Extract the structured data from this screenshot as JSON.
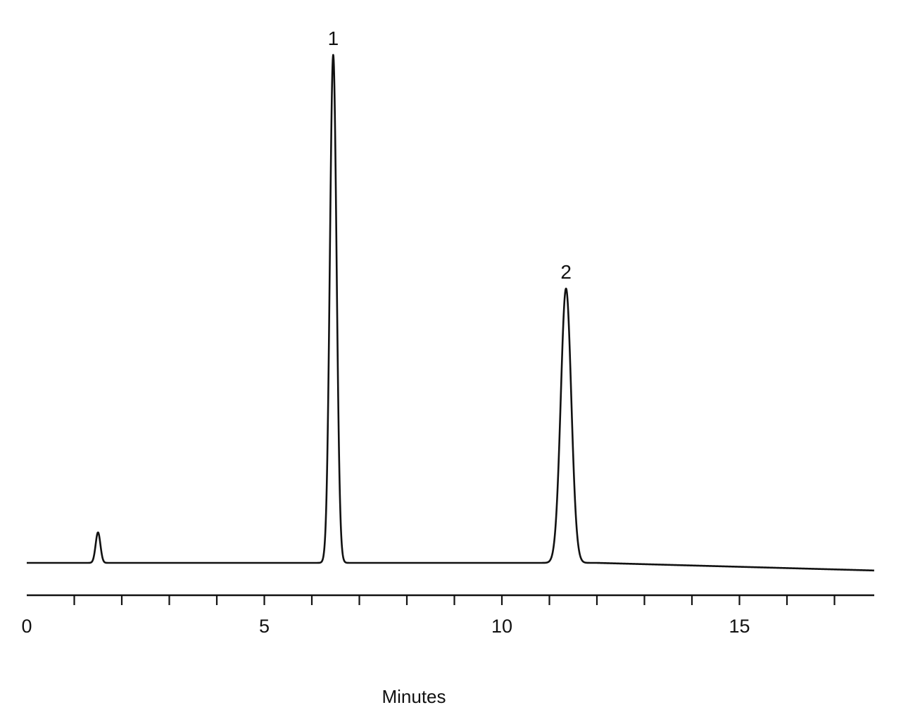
{
  "chart_data": {
    "type": "line",
    "xlabel": "Minutes",
    "xlim": [
      0,
      18
    ],
    "x_ticks": [
      0,
      1,
      2,
      3,
      4,
      5,
      6,
      7,
      8,
      9,
      10,
      11,
      12,
      13,
      14,
      15,
      16,
      17
    ],
    "x_tick_labels": [
      {
        "value": 0,
        "label": "0"
      },
      {
        "value": 5,
        "label": "5"
      },
      {
        "value": 10,
        "label": "10"
      },
      {
        "value": 15,
        "label": "15"
      }
    ],
    "ylim": [
      0,
      1.0
    ],
    "grid": false,
    "series": [
      {
        "baseline": 0.0,
        "baseline_drift_end": -0.015,
        "peaks": [
          {
            "time": 1.5,
            "height": 0.06,
            "width": 0.05
          },
          {
            "time": 6.45,
            "height": 1.0,
            "width": 0.07,
            "label": "1"
          },
          {
            "time": 11.35,
            "height": 0.54,
            "width": 0.11,
            "label": "2"
          }
        ]
      }
    ],
    "annotations": [
      {
        "text": "1",
        "x": 6.45
      },
      {
        "text": "2",
        "x": 11.35
      }
    ]
  },
  "colors": {
    "line": "#111111",
    "background": "#ffffff"
  }
}
